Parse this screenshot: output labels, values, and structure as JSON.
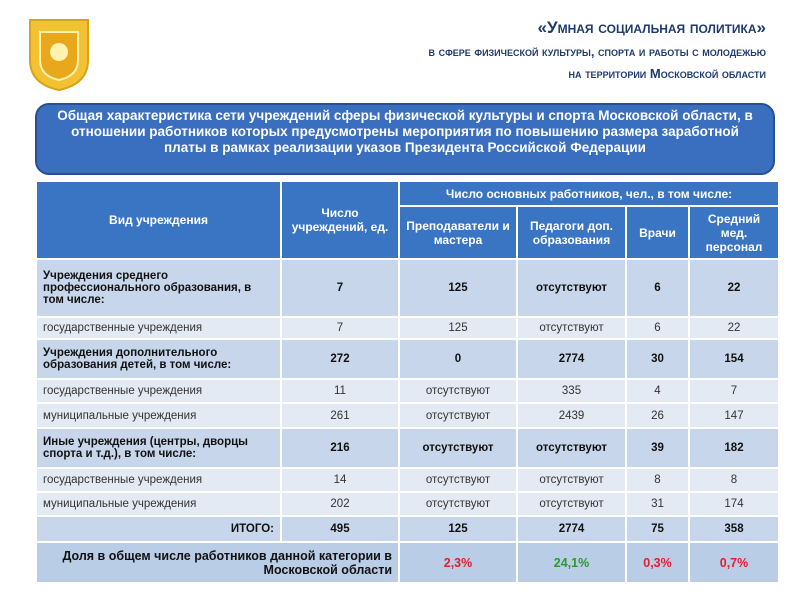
{
  "header": {
    "title": "«Умная социальная политика»",
    "subtitle_1": "в сфере физической культуры, спорта и работы с молодежью",
    "subtitle_2": "на территории Московской области"
  },
  "banner": "Общая характеристика сети учреждений сферы физической культуры и спорта Московской области, в отношении работников которых предусмотрены мероприятия по повышению размера заработной платы в рамках реализации указов Президента Российской Федерации",
  "table": {
    "head": {
      "type": "Вид учреждения",
      "count": "Число учреждений, ед.",
      "workers": "Число основных работников, чел., в том числе:",
      "sub": [
        "Преподаватели и мастера",
        "Педагоги доп. образования",
        "Врачи",
        "Средний мед. персонал"
      ]
    },
    "rows": [
      [
        "Учреждения среднего профессионального образования, в том числе:",
        "7",
        "125",
        "отсутствуют",
        "6",
        "22"
      ],
      [
        "государственные учреждения",
        "7",
        "125",
        "отсутствуют",
        "6",
        "22"
      ],
      [
        "Учреждения дополнительного образования детей, в том числе:",
        "272",
        "0",
        "2774",
        "30",
        "154"
      ],
      [
        "государственные учреждения",
        "11",
        "отсутствуют",
        "335",
        "4",
        "7"
      ],
      [
        "муниципальные учреждения",
        "261",
        "отсутствуют",
        "2439",
        "26",
        "147"
      ],
      [
        "Иные учреждения (центры, дворцы спорта и т.д.), в том числе:",
        "216",
        "отсутствуют",
        "отсутствуют",
        "39",
        "182"
      ],
      [
        "государственные учреждения",
        "14",
        "отсутствуют",
        "отсутствуют",
        "8",
        "8"
      ],
      [
        "муниципальные учреждения",
        "202",
        "отсутствуют",
        "отсутствуют",
        "31",
        "174"
      ]
    ],
    "total": [
      "ИТОГО:",
      "495",
      "125",
      "2774",
      "75",
      "358"
    ],
    "share": {
      "label": "Доля в общем числе работников данной категории в Московской области",
      "values": [
        "2,3%",
        "24,1%",
        "0,3%",
        "0,7%"
      ]
    }
  }
}
